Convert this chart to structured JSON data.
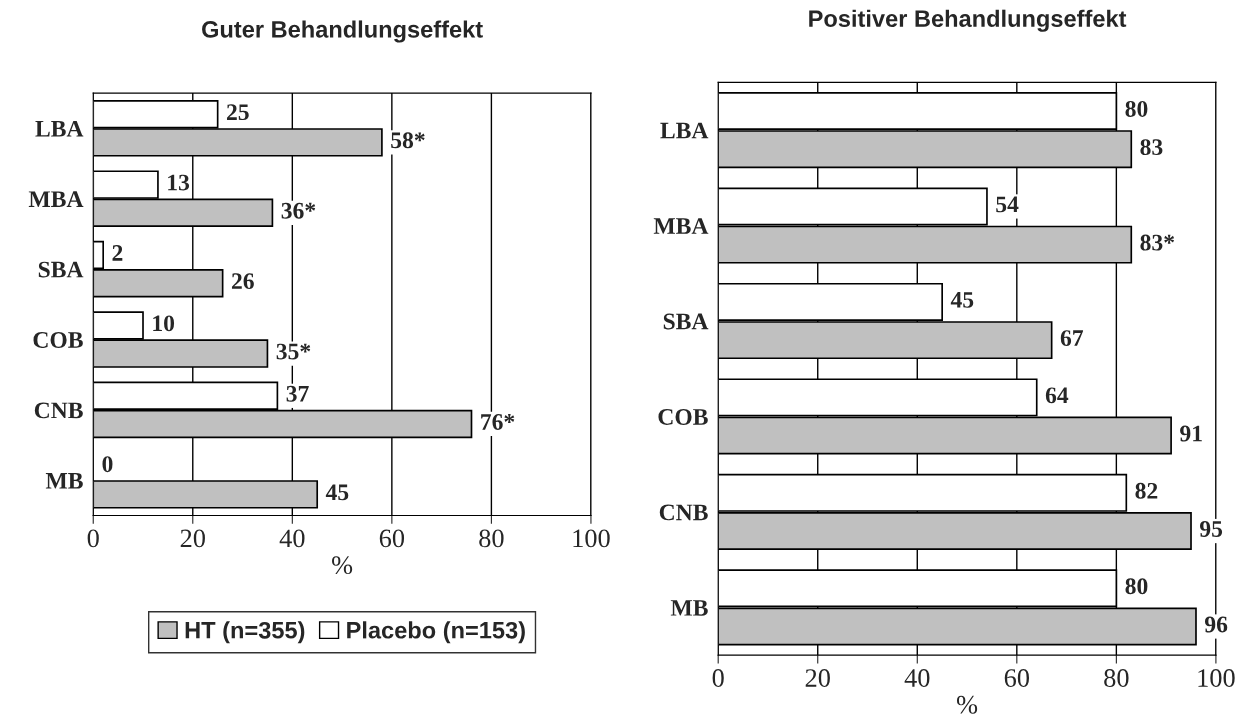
{
  "chart_data": [
    {
      "type": "bar",
      "orientation": "horizontal",
      "title": "Guter Behandlungseffekt",
      "xlabel": "%",
      "categories": [
        "LBA",
        "MBA",
        "SBA",
        "COB",
        "CNB",
        "MB"
      ],
      "xlim": [
        0,
        100
      ],
      "xticks": [
        0,
        20,
        40,
        60,
        80,
        100
      ],
      "grid": "x",
      "legend": "bottom",
      "series": [
        {
          "name": "Placebo (n=153)",
          "color": "#ffffff",
          "values": [
            25,
            13,
            2,
            10,
            37,
            0
          ],
          "value_labels": [
            "25",
            "13",
            "2",
            "10",
            "37",
            "0"
          ]
        },
        {
          "name": "HT (n=355)",
          "color": "#c0c0c0",
          "values": [
            58,
            36,
            26,
            35,
            76,
            45
          ],
          "value_labels": [
            "58*",
            "36*",
            "26",
            "35*",
            "76*",
            "45"
          ]
        }
      ]
    },
    {
      "type": "bar",
      "orientation": "horizontal",
      "title": "Positiver Behandlungseffekt",
      "xlabel": "%",
      "categories": [
        "LBA",
        "MBA",
        "SBA",
        "COB",
        "CNB",
        "MB"
      ],
      "xlim": [
        0,
        100
      ],
      "xticks": [
        0,
        20,
        40,
        60,
        80,
        100
      ],
      "grid": "x",
      "series": [
        {
          "color": "#ffffff",
          "values": [
            80,
            54,
            45,
            64,
            82,
            80
          ],
          "value_labels": [
            "80",
            "54",
            "45",
            "64",
            "82",
            "80"
          ]
        },
        {
          "color": "#c0c0c0",
          "values": [
            83,
            83,
            67,
            91,
            95,
            96
          ],
          "value_labels": [
            "83",
            "83*",
            "67",
            "91",
            "95",
            "96"
          ]
        }
      ]
    }
  ]
}
